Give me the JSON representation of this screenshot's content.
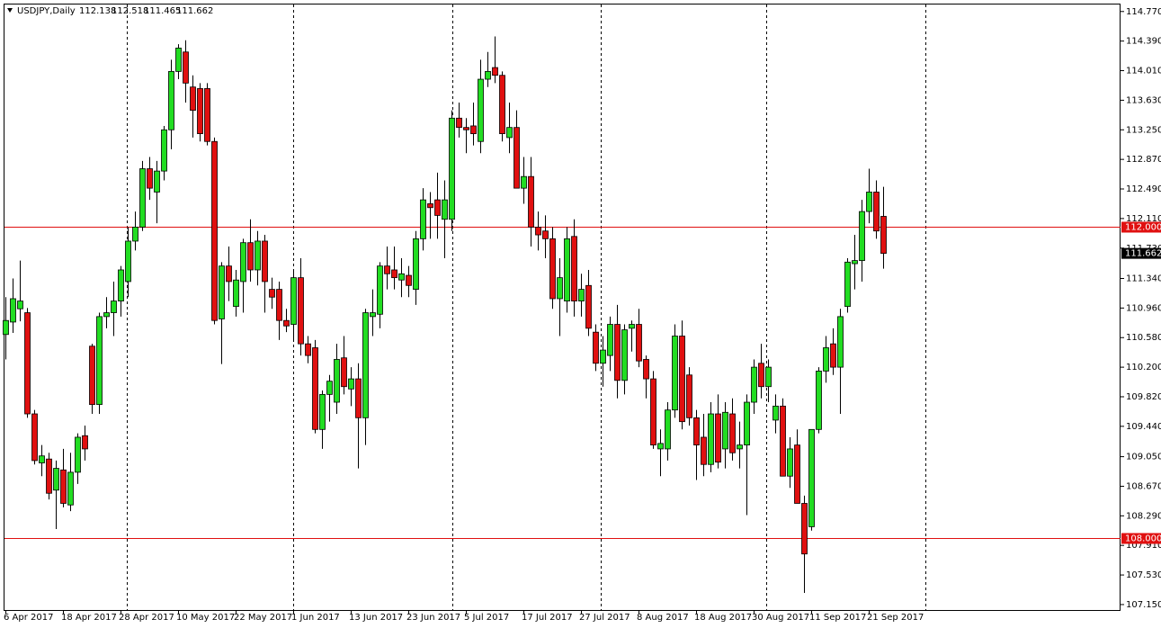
{
  "chart_data": {
    "type": "candlestick",
    "title": "USDJPY,Daily",
    "up_color": "#22dd22",
    "down_color": "#e01010",
    "line_color": "#e01010",
    "categories": [
      "6 Apr 2017",
      null,
      null,
      null,
      null,
      null,
      null,
      null,
      "18 Apr 2017",
      null,
      null,
      null,
      null,
      null,
      null,
      null,
      "28 Apr 2017",
      null,
      null,
      null,
      null,
      null,
      null,
      null,
      "10 May 2017",
      null,
      null,
      null,
      null,
      null,
      null,
      null,
      "22 May 2017",
      null,
      null,
      null,
      null,
      null,
      null,
      null,
      "1 Jun 2017",
      null,
      null,
      null,
      null,
      null,
      null,
      null,
      "13 Jun 2017",
      null,
      null,
      null,
      null,
      null,
      null,
      null,
      "23 Jun 2017",
      null,
      null,
      null,
      null,
      null,
      null,
      null,
      "5 Jul 2017",
      null,
      null,
      null,
      null,
      null,
      null,
      null,
      "17 Jul 2017",
      null,
      null,
      null,
      null,
      null,
      null,
      null,
      "27 Jul 2017",
      null,
      null,
      null,
      null,
      null,
      null,
      null,
      "8 Aug 2017",
      null,
      null,
      null,
      null,
      null,
      null,
      null,
      "18 Aug 2017",
      null,
      null,
      null,
      null,
      null,
      null,
      null,
      "30 Aug 2017",
      null,
      null,
      null,
      null,
      null,
      null,
      null,
      "11 Sep 2017",
      null,
      null,
      null,
      null,
      null,
      null,
      null,
      "21 Sep 2017",
      null,
      null
    ],
    "open": [
      110.62,
      110.78,
      110.95,
      110.9,
      109.6,
      108.97,
      109.02,
      108.62,
      108.88,
      108.43,
      108.85,
      109.32,
      110.47,
      109.72,
      110.85,
      110.9,
      111.05,
      111.3,
      111.82,
      112.0,
      112.75,
      112.45,
      112.72,
      113.25,
      114.0,
      114.25,
      113.8,
      113.78,
      113.78,
      113.1,
      110.82,
      111.5,
      110.98,
      111.3,
      111.8,
      111.45,
      111.82,
      111.2,
      111.2,
      110.8,
      110.75,
      111.35,
      110.5,
      110.45,
      109.4,
      109.85,
      109.75,
      110.32,
      109.92,
      110.05,
      109.55,
      110.85,
      110.88,
      111.5,
      111.45,
      111.32,
      111.38,
      111.2,
      111.85,
      112.3,
      112.35,
      112.1,
      112.1,
      113.4,
      113.28,
      113.3,
      113.1,
      113.9,
      114.05,
      113.95,
      113.15,
      113.28,
      112.5,
      112.65,
      112.0,
      111.95,
      111.85,
      111.08,
      111.05,
      111.88,
      111.05,
      111.25,
      110.65,
      110.25,
      110.35,
      110.75,
      110.03,
      110.7,
      110.75,
      110.3,
      110.05,
      109.15,
      109.15,
      109.65,
      110.6,
      110.1,
      109.55,
      109.3,
      108.95,
      109.6,
      109.15,
      109.6,
      109.15,
      109.2,
      109.75,
      110.25,
      109.95,
      109.52,
      109.7,
      108.8,
      109.2,
      108.45,
      108.15,
      109.4,
      110.15,
      110.5,
      110.2,
      110.98,
      111.53,
      111.57,
      112.2,
      112.45,
      112.138
    ],
    "high": [
      111.1,
      111.34,
      111.57,
      110.96,
      109.65,
      109.2,
      109.1,
      109.0,
      109.15,
      109.1,
      109.35,
      109.45,
      110.5,
      110.9,
      111.1,
      111.3,
      111.5,
      112.0,
      112.2,
      112.85,
      112.9,
      112.85,
      113.3,
      114.15,
      114.35,
      114.4,
      113.95,
      113.85,
      113.85,
      113.15,
      111.55,
      111.75,
      111.45,
      111.85,
      112.1,
      111.95,
      111.9,
      111.35,
      111.3,
      110.95,
      111.45,
      111.6,
      110.6,
      110.55,
      109.9,
      110.1,
      110.5,
      110.6,
      110.2,
      110.25,
      110.95,
      111.2,
      111.55,
      111.75,
      111.75,
      111.6,
      111.5,
      111.95,
      112.5,
      112.45,
      112.7,
      112.6,
      113.5,
      113.6,
      113.4,
      113.6,
      114.15,
      114.25,
      114.45,
      114.0,
      113.6,
      113.5,
      112.9,
      112.9,
      112.2,
      112.15,
      112.0,
      111.6,
      112.0,
      112.1,
      111.4,
      111.45,
      110.75,
      110.6,
      110.85,
      111.0,
      110.75,
      110.8,
      110.95,
      110.35,
      110.15,
      109.4,
      109.75,
      110.75,
      110.8,
      110.2,
      109.65,
      109.6,
      109.75,
      109.85,
      109.75,
      109.8,
      109.5,
      109.85,
      110.3,
      110.5,
      110.3,
      109.85,
      109.8,
      109.3,
      109.4,
      108.55,
      109.4,
      110.2,
      110.6,
      110.7,
      110.95,
      111.6,
      111.9,
      112.35,
      112.75,
      112.6,
      112.518
    ],
    "low": [
      110.3,
      110.64,
      110.79,
      109.55,
      108.95,
      108.8,
      108.5,
      108.12,
      108.4,
      108.35,
      108.7,
      109.0,
      109.6,
      109.6,
      110.7,
      110.6,
      110.85,
      111.1,
      111.7,
      111.95,
      112.35,
      112.05,
      112.6,
      113.0,
      113.9,
      113.6,
      113.15,
      113.1,
      113.05,
      110.75,
      110.24,
      111.05,
      110.85,
      110.9,
      111.3,
      111.25,
      110.9,
      110.95,
      110.55,
      110.65,
      110.55,
      110.35,
      110.25,
      109.35,
      109.15,
      109.5,
      109.6,
      109.85,
      109.7,
      108.9,
      109.2,
      110.6,
      110.7,
      111.2,
      111.2,
      111.1,
      111.1,
      111.0,
      111.7,
      111.85,
      111.85,
      111.6,
      111.95,
      113.15,
      112.95,
      113.05,
      112.95,
      113.8,
      113.85,
      113.1,
      112.95,
      112.5,
      112.3,
      111.75,
      111.7,
      111.6,
      110.95,
      110.6,
      110.9,
      110.85,
      110.85,
      110.6,
      110.15,
      109.95,
      110.15,
      109.8,
      109.85,
      110.4,
      110.2,
      109.8,
      109.15,
      108.8,
      109.0,
      109.55,
      109.4,
      109.45,
      108.75,
      108.8,
      108.85,
      108.9,
      108.9,
      109.0,
      108.9,
      108.3,
      109.6,
      109.8,
      109.75,
      109.35,
      108.8,
      108.65,
      108.45,
      107.3,
      108.1,
      109.35,
      110.0,
      110.1,
      109.6,
      110.9,
      111.2,
      111.3,
      112.05,
      111.85,
      111.465
    ],
    "close": [
      110.8,
      111.08,
      111.05,
      109.6,
      109.0,
      109.06,
      108.58,
      108.9,
      108.45,
      108.85,
      109.3,
      109.15,
      109.72,
      110.85,
      110.9,
      111.05,
      111.45,
      111.82,
      112.0,
      112.75,
      112.5,
      112.72,
      113.25,
      114.0,
      114.3,
      113.85,
      113.5,
      113.2,
      113.1,
      110.8,
      111.5,
      111.3,
      111.32,
      111.8,
      111.45,
      111.82,
      111.3,
      111.1,
      110.8,
      110.73,
      111.35,
      110.5,
      110.35,
      109.4,
      109.85,
      110.02,
      110.3,
      109.95,
      110.05,
      109.55,
      110.9,
      110.9,
      111.5,
      111.4,
      111.35,
      111.4,
      111.25,
      111.85,
      112.35,
      112.25,
      112.15,
      112.35,
      113.4,
      113.28,
      113.25,
      113.2,
      113.9,
      114.0,
      113.95,
      113.2,
      113.28,
      112.5,
      112.65,
      112.0,
      111.9,
      111.85,
      111.08,
      111.35,
      111.85,
      111.05,
      111.2,
      110.7,
      110.25,
      110.42,
      110.75,
      110.03,
      110.68,
      110.75,
      110.28,
      110.05,
      109.2,
      109.22,
      109.65,
      110.6,
      109.5,
      109.55,
      109.2,
      108.95,
      109.6,
      108.98,
      109.62,
      109.1,
      109.2,
      109.75,
      110.2,
      109.95,
      110.2,
      109.7,
      108.8,
      109.15,
      108.45,
      107.8,
      109.4,
      110.15,
      110.45,
      110.2,
      110.85,
      111.55,
      111.57,
      112.2,
      112.45,
      111.95,
      111.662
    ],
    "ylim": [
      107.08,
      114.86
    ],
    "yticks": [
      {
        "value": 114.77,
        "label": "114.770"
      },
      {
        "value": 114.39,
        "label": "114.390"
      },
      {
        "value": 114.01,
        "label": "114.010"
      },
      {
        "value": 113.63,
        "label": "113.630"
      },
      {
        "value": 113.25,
        "label": "113.250"
      },
      {
        "value": 112.87,
        "label": "112.870"
      },
      {
        "value": 112.49,
        "label": "112.490"
      },
      {
        "value": 112.11,
        "label": "112.110"
      },
      {
        "value": 111.73,
        "label": "111.730"
      },
      {
        "value": 111.34,
        "label": "111.340"
      },
      {
        "value": 110.96,
        "label": "110.960"
      },
      {
        "value": 110.58,
        "label": "110.580"
      },
      {
        "value": 110.2,
        "label": "110.200"
      },
      {
        "value": 109.82,
        "label": "109.820"
      },
      {
        "value": 109.44,
        "label": "109.440"
      },
      {
        "value": 109.05,
        "label": "109.050"
      },
      {
        "value": 108.67,
        "label": "108.670"
      },
      {
        "value": 108.29,
        "label": "108.290"
      },
      {
        "value": 107.91,
        "label": "107.910"
      },
      {
        "value": 107.53,
        "label": "107.530"
      },
      {
        "value": 107.15,
        "label": "107.150"
      }
    ],
    "hlines": [
      {
        "value": 112,
        "label": "112.000"
      },
      {
        "value": 108,
        "label": "108.000"
      }
    ]
  }
}
